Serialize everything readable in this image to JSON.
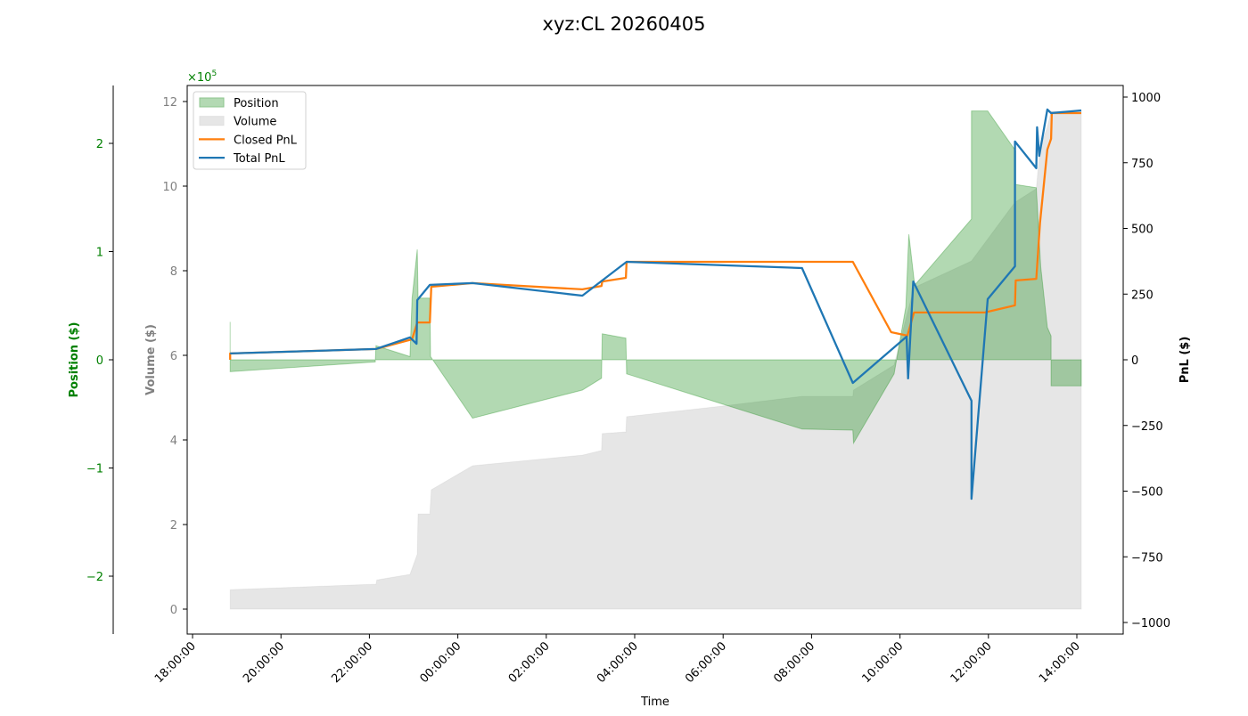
{
  "chart_data": {
    "type": "area",
    "title": "xyz:CL 20260405",
    "xlabel": "Time",
    "x_ticks": [
      "18:00:00",
      "20:00:00",
      "22:00:00",
      "00:00:00",
      "02:00:00",
      "04:00:00",
      "06:00:00",
      "08:00:00",
      "10:00:00",
      "12:00:00",
      "14:00:00"
    ],
    "axes": {
      "position": {
        "label": "Position ($)",
        "ylim": [
          -2.5,
          2.5
        ],
        "ticks": [
          -2,
          -1,
          0,
          1,
          2
        ],
        "color": "#008000"
      },
      "volume": {
        "label": "Volume ($)",
        "ylim": [
          -0.6,
          12.4
        ],
        "ticks": [
          0,
          2,
          4,
          6,
          8,
          10,
          12
        ],
        "offset_text": "×10",
        "offset_exp": "5",
        "color": "#808080",
        "offset_color": "#008000"
      },
      "pnl": {
        "label": "PnL ($)",
        "ylim": [
          -1000,
          1000
        ],
        "ticks": [
          -1000,
          -750,
          -500,
          -250,
          0,
          250,
          500,
          750,
          1000
        ],
        "color": "#000000"
      }
    },
    "legend": {
      "placement": "upper-left",
      "entries": [
        {
          "name": "Position",
          "kind": "patch",
          "color": "#b3d9b3",
          "edge": "#8cc58c"
        },
        {
          "name": "Volume",
          "kind": "patch",
          "color": "#e6e6e6",
          "edge": "#e0e0e0"
        },
        {
          "name": "Closed PnL",
          "kind": "line",
          "color": "#ff7f0e"
        },
        {
          "name": "Total PnL",
          "kind": "line",
          "color": "#1f77b4"
        }
      ]
    },
    "series": [
      {
        "name": "Volume",
        "axis": "volume",
        "style": "fill",
        "color": "#808080",
        "points": [
          [
            "18:51",
            0
          ],
          [
            "18:51",
            0.46
          ],
          [
            "22:09",
            0.59
          ],
          [
            "22:10",
            0.69
          ],
          [
            "22:55",
            0.82
          ],
          [
            "23:05",
            1.3
          ],
          [
            "23:06",
            2.25
          ],
          [
            "23:22",
            2.25
          ],
          [
            "23:24",
            2.82
          ],
          [
            "00:20",
            3.39
          ],
          [
            "02:49",
            3.64
          ],
          [
            "03:15",
            3.75
          ],
          [
            "03:16",
            4.15
          ],
          [
            "03:48",
            4.19
          ],
          [
            "03:49",
            4.55
          ],
          [
            "05:59",
            4.8
          ],
          [
            "07:47",
            5.03
          ],
          [
            "08:56",
            5.03
          ],
          [
            "08:57",
            5.18
          ],
          [
            "09:52",
            5.77
          ],
          [
            "10:10",
            7.0
          ],
          [
            "10:19",
            7.6
          ],
          [
            "11:37",
            8.23
          ],
          [
            "12:36",
            9.62
          ],
          [
            "13:05",
            9.94
          ],
          [
            "13:10",
            10.9
          ],
          [
            "13:20",
            11.4
          ],
          [
            "13:25",
            11.77
          ],
          [
            "14:06",
            11.77
          ],
          [
            "14:06",
            0
          ]
        ]
      },
      {
        "name": "Position",
        "axis": "position",
        "style": "fill",
        "color": "#008000",
        "points": [
          [
            "18:51",
            0
          ],
          [
            "18:51",
            0.35
          ],
          [
            "18:51",
            -0.11
          ],
          [
            "22:08",
            -0.02
          ],
          [
            "22:09",
            0.13
          ],
          [
            "22:55",
            0.03
          ],
          [
            "22:58",
            0.57
          ],
          [
            "23:05",
            1.02
          ],
          [
            "23:06",
            0.57
          ],
          [
            "23:22",
            0.57
          ],
          [
            "23:23",
            0.03
          ],
          [
            "00:20",
            -0.54
          ],
          [
            "02:49",
            -0.28
          ],
          [
            "03:15",
            -0.17
          ],
          [
            "03:16",
            0.24
          ],
          [
            "03:48",
            0.2
          ],
          [
            "03:49",
            -0.13
          ],
          [
            "07:47",
            -0.64
          ],
          [
            "08:56",
            -0.65
          ],
          [
            "08:57",
            -0.77
          ],
          [
            "09:52",
            -0.13
          ],
          [
            "10:08",
            0.49
          ],
          [
            "10:12",
            1.16
          ],
          [
            "10:20",
            0.69
          ],
          [
            "11:37",
            1.3
          ],
          [
            "11:37",
            2.3
          ],
          [
            "11:59",
            2.3
          ],
          [
            "12:37",
            1.93
          ],
          [
            "12:37",
            1.62
          ],
          [
            "13:05",
            1.59
          ],
          [
            "13:11",
            0.86
          ],
          [
            "13:20",
            0.3
          ],
          [
            "13:25",
            0.22
          ],
          [
            "13:25",
            -0.24
          ],
          [
            "14:06",
            -0.24
          ],
          [
            "14:06",
            0
          ]
        ]
      },
      {
        "name": "Closed PnL",
        "axis": "pnl",
        "style": "line",
        "color": "#ff7f0e",
        "points": [
          [
            "18:51",
            0
          ],
          [
            "18:51",
            24
          ],
          [
            "22:09",
            41
          ],
          [
            "22:58",
            78
          ],
          [
            "23:05",
            142
          ],
          [
            "23:22",
            142
          ],
          [
            "23:24",
            278
          ],
          [
            "00:20",
            292
          ],
          [
            "02:49",
            268
          ],
          [
            "03:15",
            281
          ],
          [
            "03:16",
            298
          ],
          [
            "03:48",
            312
          ],
          [
            "03:49",
            373
          ],
          [
            "08:56",
            373
          ],
          [
            "09:48",
            105
          ],
          [
            "10:10",
            92
          ],
          [
            "10:19",
            180
          ],
          [
            "11:55",
            180
          ],
          [
            "12:36",
            207
          ],
          [
            "12:37",
            302
          ],
          [
            "13:05",
            308
          ],
          [
            "13:10",
            522
          ],
          [
            "13:20",
            800
          ],
          [
            "13:25",
            841
          ],
          [
            "13:26",
            939
          ],
          [
            "14:06",
            939
          ]
        ]
      },
      {
        "name": "Total PnL",
        "axis": "pnl",
        "style": "line",
        "color": "#1f77b4",
        "points": [
          [
            "18:51",
            24
          ],
          [
            "22:09",
            41
          ],
          [
            "22:55",
            85
          ],
          [
            "23:04",
            61
          ],
          [
            "23:05",
            227
          ],
          [
            "23:22",
            285
          ],
          [
            "00:20",
            292
          ],
          [
            "02:49",
            244
          ],
          [
            "03:49",
            373
          ],
          [
            "07:47",
            349
          ],
          [
            "08:56",
            -88
          ],
          [
            "10:09",
            88
          ],
          [
            "10:11",
            -71
          ],
          [
            "10:18",
            298
          ],
          [
            "11:37",
            -156
          ],
          [
            "11:37",
            -529
          ],
          [
            "11:59",
            231
          ],
          [
            "12:36",
            356
          ],
          [
            "12:36",
            831
          ],
          [
            "13:05",
            729
          ],
          [
            "13:06",
            885
          ],
          [
            "13:09",
            776
          ],
          [
            "13:20",
            953
          ],
          [
            "13:25",
            939
          ],
          [
            "14:06",
            949
          ]
        ]
      }
    ]
  }
}
